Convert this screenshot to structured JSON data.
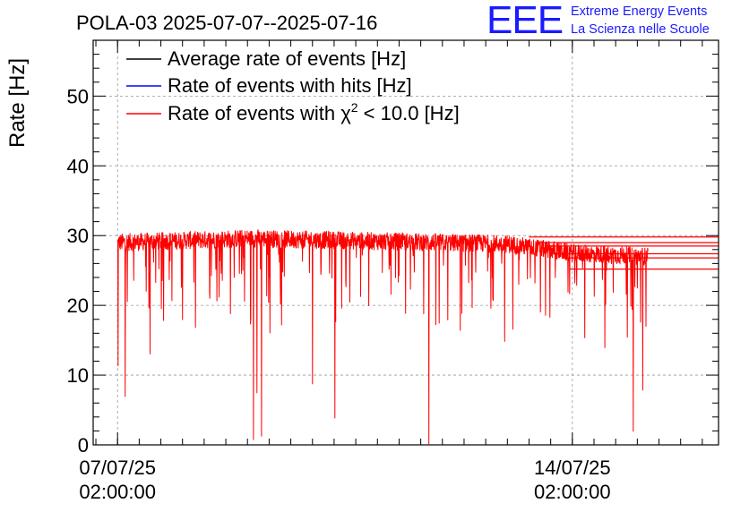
{
  "chart_data": {
    "type": "line",
    "title": "POLA-03 2025-07-07--2025-07-16",
    "ylabel": "Rate [Hz]",
    "xlabel": "",
    "ylim": [
      0,
      58
    ],
    "xlim": [
      "2025-07-06T17:00:00",
      "2025-07-16T08:00:00"
    ],
    "yticks": [
      0,
      10,
      20,
      30,
      40,
      50
    ],
    "xticks": [
      {
        "at": "2025-07-07T02:00:00",
        "label": [
          "07/07/25",
          "02:00:00"
        ]
      },
      {
        "at": "2025-07-14T02:00:00",
        "label": [
          "14/07/25",
          "02:00:00"
        ]
      }
    ],
    "grid": true,
    "legend_position": "top-left",
    "legend": [
      {
        "label_pre": "Average rate of events [Hz]",
        "label_sup": "",
        "label_post": "",
        "color": "#000000"
      },
      {
        "label_pre": "Rate of events with hits [Hz]",
        "label_sup": "",
        "label_post": "",
        "color": "#0000ff"
      },
      {
        "label_pre": "Rate of events with χ",
        "label_sup": "2",
        "label_post": " < 10.0 [Hz]",
        "color": "#ff0000"
      }
    ],
    "series": [
      {
        "name": "Rate of events with χ2 < 10.0 [Hz]",
        "color": "#ff0000",
        "data_start": "2025-07-07T02:00:00",
        "data_end": "2025-07-15T06:00:00",
        "baseline": [
          [
            "2025-07-07T02:00:00",
            29.0
          ],
          [
            "2025-07-09T02:00:00",
            29.6
          ],
          [
            "2025-07-11T02:00:00",
            29.2
          ],
          [
            "2025-07-13T02:00:00",
            28.8
          ],
          [
            "2025-07-14T02:00:00",
            27.5
          ],
          [
            "2025-07-15T06:00:00",
            27.0
          ]
        ],
        "dips": [
          [
            "2025-07-07T02:10:00",
            11.3
          ],
          [
            "2025-07-07T04:50:00",
            6.9
          ],
          [
            "2025-07-07T14:00:00",
            13.0
          ],
          [
            "2025-07-09T04:10:00",
            0.7
          ],
          [
            "2025-07-09T05:30:00",
            7.4
          ],
          [
            "2025-07-09T07:10:00",
            1.2
          ],
          [
            "2025-07-09T10:20:00",
            16.0
          ],
          [
            "2025-07-10T02:00:00",
            8.7
          ],
          [
            "2025-07-10T10:20:00",
            3.8
          ],
          [
            "2025-07-11T21:00:00",
            0.1
          ],
          [
            "2025-07-13T01:00:00",
            14.8
          ],
          [
            "2025-07-14T14:00:00",
            13.9
          ],
          [
            "2025-07-15T00:30:00",
            1.9
          ],
          [
            "2025-07-15T04:00:00",
            7.8
          ]
        ],
        "flat_levels": [
          29.8,
          29.0,
          28.5,
          27.4,
          26.8,
          25.2
        ]
      },
      {
        "name": "Average rate of events [Hz]",
        "color": "#000000",
        "hidden_under": "Rate of events with χ2 < 10.0 [Hz]"
      },
      {
        "name": "Rate of events with hits [Hz]",
        "color": "#0000ff",
        "hidden_under": "Rate of events with χ2 < 10.0 [Hz]"
      }
    ]
  },
  "logo": {
    "mark": "EEE",
    "line1": "Extreme Energy Events",
    "line2": "La Scienza nelle Scuole"
  }
}
